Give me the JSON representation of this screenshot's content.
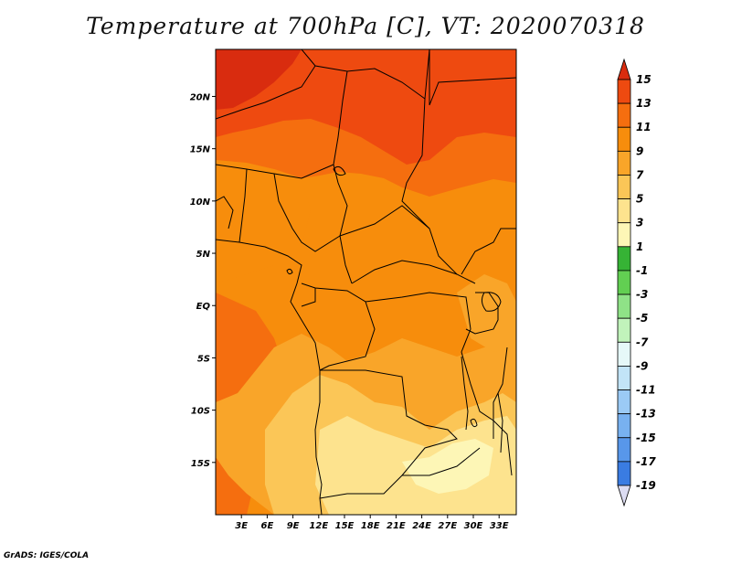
{
  "title": "Temperature at 700hPa [C], VT: 2020070318",
  "credit": "GrADS: IGES/COLA",
  "map": {
    "lon_range": [
      0,
      35
    ],
    "lat_range": [
      -20,
      24.5
    ],
    "lat_ticks": [
      {
        "value": 20,
        "label": "20N"
      },
      {
        "value": 15,
        "label": "15N"
      },
      {
        "value": 10,
        "label": "10N"
      },
      {
        "value": 5,
        "label": "5N"
      },
      {
        "value": 0,
        "label": "EQ"
      },
      {
        "value": -5,
        "label": "5S"
      },
      {
        "value": -10,
        "label": "10S"
      },
      {
        "value": -15,
        "label": "15S"
      }
    ],
    "lon_ticks": [
      {
        "value": 3,
        "label": "3E"
      },
      {
        "value": 6,
        "label": "6E"
      },
      {
        "value": 9,
        "label": "9E"
      },
      {
        "value": 12,
        "label": "12E"
      },
      {
        "value": 15,
        "label": "15E"
      },
      {
        "value": 18,
        "label": "18E"
      },
      {
        "value": 21,
        "label": "21E"
      },
      {
        "value": 24,
        "label": "24E"
      },
      {
        "value": 27,
        "label": "27E"
      },
      {
        "value": 30,
        "label": "30E"
      },
      {
        "value": 33,
        "label": "33E"
      }
    ]
  },
  "colorbar": {
    "labels": [
      "15",
      "13",
      "11",
      "9",
      "7",
      "5",
      "3",
      "1",
      "-1",
      "-3",
      "-5",
      "-7",
      "-9",
      "-11",
      "-13",
      "-15",
      "-17",
      "-19"
    ],
    "colors": [
      "#d92c0f",
      "#ee4a10",
      "#f56e0f",
      "#f78d0c",
      "#f9a529",
      "#fbc657",
      "#fde38e",
      "#fdf6b6",
      "#36b335",
      "#62cf52",
      "#8fe287",
      "#c1f3bb",
      "#e6f8f8",
      "#c2e4f7",
      "#9bcaf5",
      "#78b1f0",
      "#5897ea",
      "#3a7ce2",
      "#235fd6",
      "#1843c4",
      "#0c2aa5",
      "#0a1378",
      "#dcdcf2"
    ],
    "top_color": "#d92c0f",
    "bottom_color": "#dcdcf2"
  }
}
